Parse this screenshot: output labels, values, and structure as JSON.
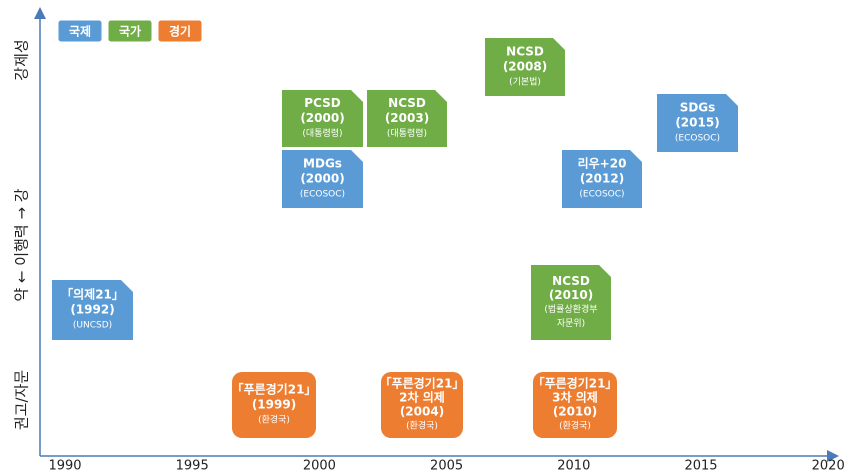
{
  "legend": [
    "국제",
    "국가",
    "경기"
  ],
  "y_axis": {
    "top": "강제성",
    "middle": "약 ← 이행력 → 강",
    "bottom": "권고/자문"
  },
  "x_axis": {
    "ticks": [
      "1990",
      "1995",
      "2000",
      "2005",
      "2010",
      "2015",
      "2020"
    ]
  },
  "nodes": [
    {
      "lines": [
        "「의제21」",
        "(1992)",
        "(UNCSD)"
      ]
    },
    {
      "lines": [
        "「푸른경기21」",
        "(1999)",
        "(환경국)"
      ]
    },
    {
      "lines": [
        "PCSD",
        "(2000)",
        "(대통령령)"
      ]
    },
    {
      "lines": [
        "MDGs",
        "(2000)",
        "(ECOSOC)"
      ]
    },
    {
      "lines": [
        "NCSD",
        "(2003)",
        "(대통령령)"
      ]
    },
    {
      "lines": [
        "「푸른경기21」",
        "2차 의제",
        "(2004)",
        "(환경국)"
      ]
    },
    {
      "lines": [
        "NCSD",
        "(2008)",
        "(기본법)"
      ]
    },
    {
      "lines": [
        "NCSD",
        "(2010)",
        "(법률상환경부",
        "자문위)"
      ]
    },
    {
      "lines": [
        "리우+20",
        "(2012)",
        "(ECOSOC)"
      ]
    },
    {
      "lines": [
        "「푸른경기21」",
        "3차 의제",
        "(2010)",
        "(환경국)"
      ]
    },
    {
      "lines": [
        "SDGs",
        "(2015)",
        "(ECOSOC)"
      ]
    }
  ]
}
